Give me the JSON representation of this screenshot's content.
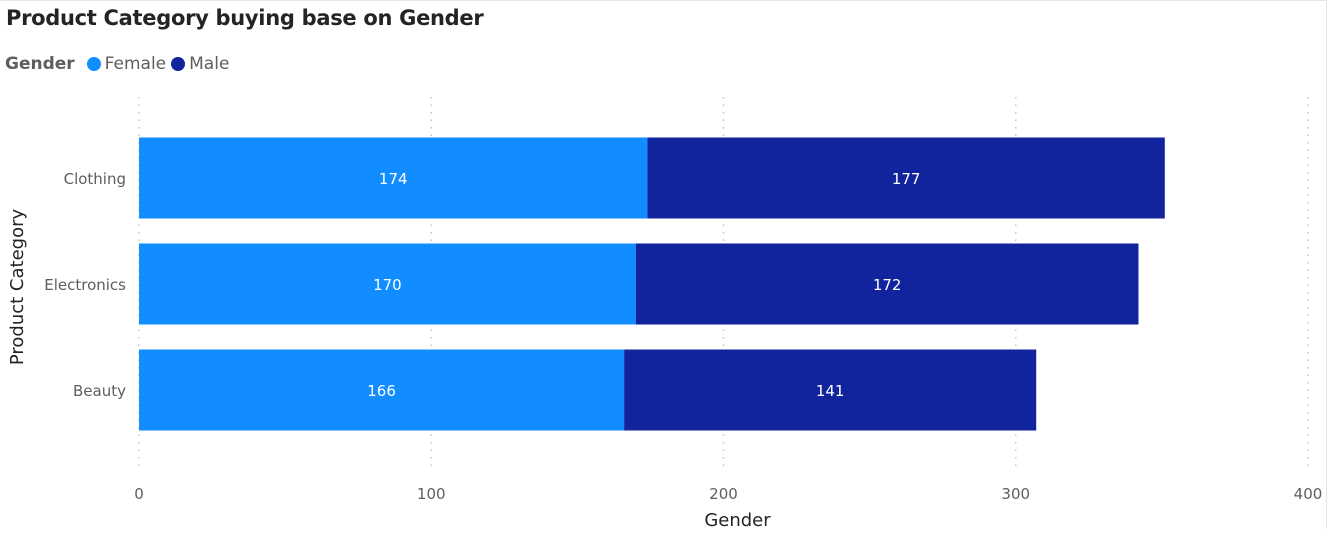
{
  "chart_data": {
    "type": "bar",
    "orientation": "horizontal",
    "stacked": true,
    "title": "Product Category buying base on Gender",
    "legend_title": "Gender",
    "legend_position": "top-left",
    "categories": [
      "Clothing",
      "Electronics",
      "Beauty"
    ],
    "series": [
      {
        "name": "Female",
        "color": "#118dff",
        "values": [
          174,
          170,
          166
        ]
      },
      {
        "name": "Male",
        "color": "#12239e",
        "values": [
          177,
          172,
          141
        ]
      }
    ],
    "xlabel": "Gender",
    "ylabel": "Product Category",
    "xlim": [
      0,
      400
    ],
    "xticks": [
      0,
      100,
      200,
      300,
      400
    ],
    "grid": "vertical-dotted"
  }
}
